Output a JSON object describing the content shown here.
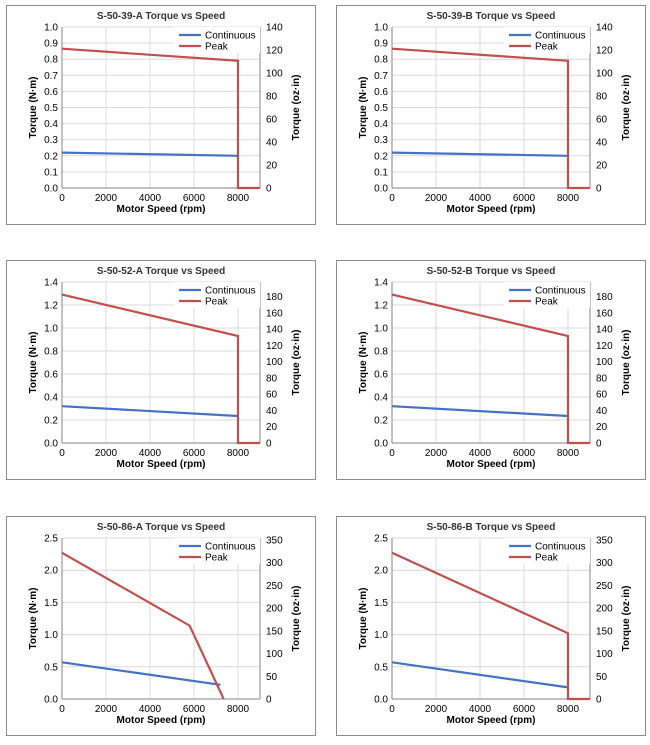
{
  "chart_data": [
    {
      "type": "line",
      "title": "S-50-39-A Torque vs Speed",
      "xlabel": "Motor Speed (rpm)",
      "ylabel": "Torque (N·m)",
      "y2label": "Torque (oz·in)",
      "xlim": [
        0,
        9000
      ],
      "xstep": 2000,
      "xticks": [
        "0",
        "2000",
        "4000",
        "6000",
        "8000"
      ],
      "ylim": [
        0,
        1.0
      ],
      "ystep": 0.1,
      "ydecimals": 1,
      "y2lim": [
        0,
        140
      ],
      "y2step": 20,
      "grid": true,
      "legend": "top-right",
      "series": [
        {
          "name": "Continuous",
          "color": "#4472c4",
          "x": [
            0,
            8000
          ],
          "y": [
            0.22,
            0.2
          ]
        },
        {
          "name": "Peak",
          "color": "#c0504d",
          "x": [
            0,
            8000,
            8000,
            9000
          ],
          "y": [
            0.865,
            0.79,
            0.0,
            0.0
          ]
        }
      ]
    },
    {
      "type": "line",
      "title": "S-50-39-B Torque vs Speed",
      "xlabel": "Motor Speed (rpm)",
      "ylabel": "Torque (N·m)",
      "y2label": "Torque (oz·in)",
      "xlim": [
        0,
        9000
      ],
      "xstep": 2000,
      "xticks": [
        "0",
        "2000",
        "4000",
        "6000",
        "8000"
      ],
      "ylim": [
        0,
        1.0
      ],
      "ystep": 0.1,
      "ydecimals": 1,
      "y2lim": [
        0,
        140
      ],
      "y2step": 20,
      "grid": true,
      "legend": "top-right",
      "series": [
        {
          "name": "Continuous",
          "color": "#4472c4",
          "x": [
            0,
            8000
          ],
          "y": [
            0.22,
            0.2
          ]
        },
        {
          "name": "Peak",
          "color": "#c0504d",
          "x": [
            0,
            8000,
            8000,
            9000
          ],
          "y": [
            0.865,
            0.79,
            0.0,
            0.0
          ]
        }
      ]
    },
    {
      "type": "line",
      "title": "S-50-52-A Torque vs Speed",
      "xlabel": "Motor Speed (rpm)",
      "ylabel": "Torque (N·m)",
      "y2label": "Torque (oz·in)",
      "xlim": [
        0,
        9000
      ],
      "xstep": 2000,
      "xticks": [
        "0",
        "2000",
        "4000",
        "6000",
        "8000"
      ],
      "ylim": [
        0,
        1.4
      ],
      "ystep": 0.2,
      "ydecimals": 1,
      "y2lim": [
        0,
        198
      ],
      "y2step": 20,
      "grid": true,
      "legend": "top-right",
      "series": [
        {
          "name": "Continuous",
          "color": "#4472c4",
          "x": [
            0,
            8000
          ],
          "y": [
            0.32,
            0.235
          ]
        },
        {
          "name": "Peak",
          "color": "#c0504d",
          "x": [
            0,
            8000,
            8000,
            9000
          ],
          "y": [
            1.29,
            0.93,
            0.0,
            0.0
          ]
        }
      ]
    },
    {
      "type": "line",
      "title": "S-50-52-B Torque vs Speed",
      "xlabel": "Motor Speed (rpm)",
      "ylabel": "Torque (N·m)",
      "y2label": "Torque (oz·in)",
      "xlim": [
        0,
        9000
      ],
      "xstep": 2000,
      "xticks": [
        "0",
        "2000",
        "4000",
        "6000",
        "8000"
      ],
      "ylim": [
        0,
        1.4
      ],
      "ystep": 0.2,
      "ydecimals": 1,
      "y2lim": [
        0,
        198
      ],
      "y2step": 20,
      "grid": true,
      "legend": "top-right",
      "series": [
        {
          "name": "Continuous",
          "color": "#4472c4",
          "x": [
            0,
            8000
          ],
          "y": [
            0.32,
            0.235
          ]
        },
        {
          "name": "Peak",
          "color": "#c0504d",
          "x": [
            0,
            8000,
            8000,
            9000
          ],
          "y": [
            1.29,
            0.93,
            0.0,
            0.0
          ]
        }
      ]
    },
    {
      "type": "line",
      "title": "S-50-86-A Torque vs Speed",
      "xlabel": "Motor Speed (rpm)",
      "ylabel": "Torque (N·m)",
      "y2label": "Torque (oz·in)",
      "xlim": [
        0,
        9000
      ],
      "xstep": 2000,
      "xticks": [
        "0",
        "2000",
        "4000",
        "6000",
        "8000"
      ],
      "ylim": [
        0,
        2.5
      ],
      "ystep": 0.5,
      "ydecimals": 1,
      "y2lim": [
        0,
        354
      ],
      "y2step": 50,
      "grid": true,
      "legend": "top-right",
      "series": [
        {
          "name": "Continuous",
          "color": "#4472c4",
          "x": [
            0,
            7200
          ],
          "y": [
            0.57,
            0.22
          ]
        },
        {
          "name": "Peak",
          "color": "#c0504d",
          "x": [
            0,
            5800,
            7350
          ],
          "y": [
            2.27,
            1.14,
            0.0
          ]
        }
      ]
    },
    {
      "type": "line",
      "title": "S-50-86-B Torque vs Speed",
      "xlabel": "Motor Speed (rpm)",
      "ylabel": "Torque (N·m)",
      "y2label": "Torque (oz·in)",
      "xlim": [
        0,
        9000
      ],
      "xstep": 2000,
      "xticks": [
        "0",
        "2000",
        "4000",
        "6000",
        "8000"
      ],
      "ylim": [
        0,
        2.5
      ],
      "ystep": 0.5,
      "ydecimals": 1,
      "y2lim": [
        0,
        354
      ],
      "y2step": 50,
      "grid": true,
      "legend": "top-right",
      "series": [
        {
          "name": "Continuous",
          "color": "#4472c4",
          "x": [
            0,
            8000
          ],
          "y": [
            0.57,
            0.18
          ]
        },
        {
          "name": "Peak",
          "color": "#c0504d",
          "x": [
            0,
            8000,
            8000,
            9000
          ],
          "y": [
            2.27,
            1.02,
            0.0,
            0.0
          ]
        }
      ]
    }
  ]
}
